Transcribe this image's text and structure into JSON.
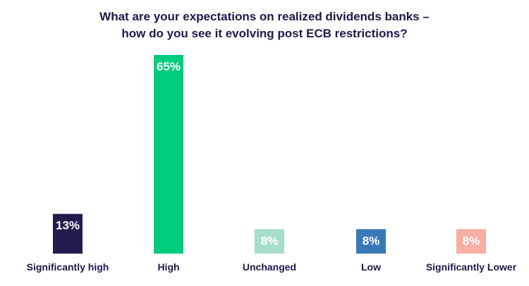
{
  "chart_data": {
    "type": "bar",
    "title_lines": [
      "What are your expectations on realized dividends banks –",
      "how do you see it evolving post ECB restrictions?"
    ],
    "categories": [
      "Significantly high",
      "High",
      "Unchanged",
      "Low",
      "Significantly Lower"
    ],
    "values": [
      13,
      65,
      8,
      8,
      8
    ],
    "value_labels": [
      "13%",
      "65%",
      "8%",
      "8%",
      "8%"
    ],
    "colors": [
      "#221c4f",
      "#00cc7e",
      "#a6dec9",
      "#3a78b8",
      "#f6aea5"
    ],
    "unit": "%",
    "ylim": [
      0,
      65
    ],
    "grid": false,
    "xlabel": "",
    "ylabel": ""
  }
}
